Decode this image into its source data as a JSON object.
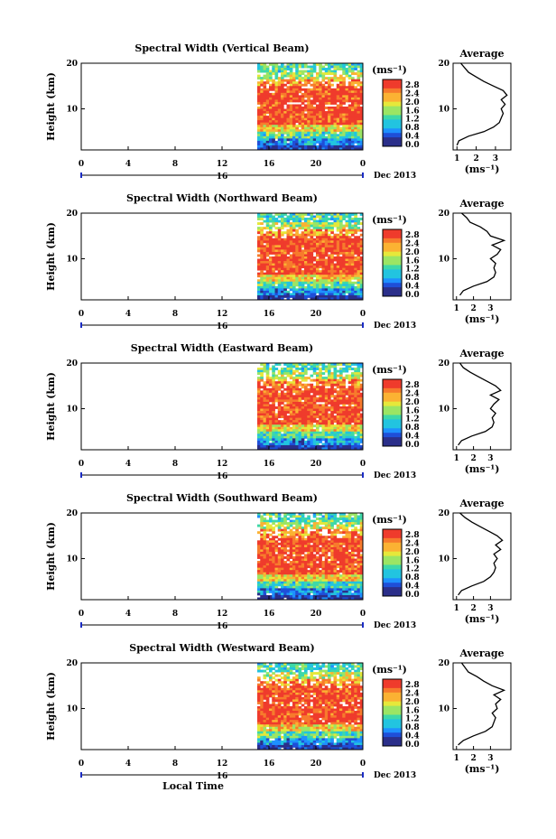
{
  "page": {
    "xlabel": "Local Time",
    "colorscale": [
      "#2b2f8a",
      "#1f4fd8",
      "#1e90ff",
      "#22c4e0",
      "#3ed8a8",
      "#9be564",
      "#e6e83a",
      "#fbb233",
      "#f77b2c",
      "#ef3b2c"
    ]
  },
  "chart_data": [
    {
      "type": "heatmap",
      "title": "Spectral Width (Vertical Beam)",
      "ylabel": "Height (km)",
      "xticks": [
        "0",
        "4",
        "8",
        "12",
        "16",
        "20",
        "0"
      ],
      "date_marker": "16",
      "date_label": "Dec 2013",
      "yticks": [
        "20",
        "10"
      ],
      "xlim": [
        0,
        24
      ],
      "ylim": [
        1,
        20
      ],
      "data_start_hour": 15,
      "colorbar": {
        "unit": "(ms⁻¹)",
        "ticks": [
          "2.8",
          "2.4",
          "2.0",
          "1.6",
          "1.2",
          "0.8",
          "0.4",
          "0.0"
        ],
        "range": [
          0.0,
          3.0
        ]
      },
      "profile": {
        "title": "Average",
        "xlabel": "(ms⁻¹)",
        "xticks": [
          "1",
          "2",
          "3"
        ],
        "xlim": [
          0.8,
          3.8
        ],
        "yticks": [
          "20",
          "10"
        ],
        "ylim": [
          1,
          20
        ],
        "heights": [
          2,
          3,
          4,
          5,
          6,
          7,
          8,
          9,
          10,
          11,
          12,
          13,
          14,
          15,
          16,
          17,
          18,
          19,
          20
        ],
        "values": [
          1.0,
          1.1,
          1.6,
          2.4,
          2.9,
          3.2,
          3.3,
          3.4,
          3.3,
          3.5,
          3.3,
          3.6,
          3.4,
          2.9,
          2.4,
          2.0,
          1.6,
          1.4,
          1.2
        ]
      }
    },
    {
      "type": "heatmap",
      "title": "Spectral Width (Northward Beam)",
      "ylabel": "Height (km)",
      "xticks": [
        "0",
        "4",
        "8",
        "12",
        "16",
        "20",
        "0"
      ],
      "date_marker": "16",
      "date_label": "Dec 2013",
      "yticks": [
        "20",
        "10"
      ],
      "xlim": [
        0,
        24
      ],
      "ylim": [
        1,
        20
      ],
      "data_start_hour": 15,
      "colorbar": {
        "unit": "(ms⁻¹)",
        "ticks": [
          "2.8",
          "2.4",
          "2.0",
          "1.6",
          "1.2",
          "0.8",
          "0.4",
          "0.0"
        ],
        "range": [
          0.0,
          3.0
        ]
      },
      "profile": {
        "title": "Average",
        "xlabel": "(ms⁻¹)",
        "xticks": [
          "1",
          "2",
          "3"
        ],
        "xlim": [
          0.8,
          4.2
        ],
        "yticks": [
          "20",
          "10"
        ],
        "ylim": [
          1,
          20
        ],
        "heights": [
          2,
          3,
          4,
          5,
          6,
          7,
          8,
          9,
          10,
          11,
          12,
          13,
          14,
          15,
          16,
          17,
          18,
          19,
          20
        ],
        "values": [
          1.2,
          1.4,
          2.0,
          2.8,
          3.2,
          3.3,
          3.2,
          3.3,
          3.0,
          3.4,
          3.6,
          3.1,
          3.8,
          3.0,
          2.8,
          2.4,
          1.8,
          1.6,
          1.3
        ]
      }
    },
    {
      "type": "heatmap",
      "title": "Spectral Width (Eastward Beam)",
      "ylabel": "Height (km)",
      "xticks": [
        "0",
        "4",
        "8",
        "12",
        "16",
        "20",
        "0"
      ],
      "date_marker": "16",
      "date_label": "Dec 2013",
      "yticks": [
        "20",
        "10"
      ],
      "xlim": [
        0,
        24
      ],
      "ylim": [
        1,
        20
      ],
      "data_start_hour": 15,
      "colorbar": {
        "unit": "(ms⁻¹)",
        "ticks": [
          "2.8",
          "2.4",
          "2.0",
          "1.6",
          "1.2",
          "0.8",
          "0.4",
          "0.0"
        ],
        "range": [
          0.0,
          3.0
        ]
      },
      "profile": {
        "title": "Average",
        "xlabel": "(ms⁻¹)",
        "xticks": [
          "1",
          "2",
          "3"
        ],
        "xlim": [
          0.8,
          4.2
        ],
        "yticks": [
          "20",
          "10"
        ],
        "ylim": [
          1,
          20
        ],
        "heights": [
          2,
          3,
          4,
          5,
          6,
          7,
          8,
          9,
          10,
          11,
          12,
          13,
          14,
          15,
          16,
          17,
          18,
          19,
          20
        ],
        "values": [
          1.1,
          1.3,
          1.9,
          2.7,
          3.1,
          3.2,
          3.1,
          3.3,
          3.0,
          3.2,
          3.5,
          3.0,
          3.6,
          3.3,
          2.8,
          2.3,
          1.8,
          1.4,
          1.2
        ]
      }
    },
    {
      "type": "heatmap",
      "title": "Spectral Width (Southward Beam)",
      "ylabel": "Height (km)",
      "xticks": [
        "0",
        "4",
        "8",
        "12",
        "16",
        "20",
        "0"
      ],
      "date_marker": "16",
      "date_label": "Dec 2013",
      "yticks": [
        "20",
        "10"
      ],
      "xlim": [
        0,
        24
      ],
      "ylim": [
        1,
        20
      ],
      "data_start_hour": 15,
      "colorbar": {
        "unit": "(ms⁻¹)",
        "ticks": [
          "2.8",
          "2.4",
          "2.0",
          "1.6",
          "1.2",
          "0.8",
          "0.4",
          "0.0"
        ],
        "range": [
          0.0,
          3.0
        ]
      },
      "profile": {
        "title": "Average",
        "xlabel": "(ms⁻¹)",
        "xticks": [
          "1",
          "2",
          "3"
        ],
        "xlim": [
          0.8,
          4.2
        ],
        "yticks": [
          "20",
          "10"
        ],
        "ylim": [
          1,
          20
        ],
        "heights": [
          2,
          3,
          4,
          5,
          6,
          7,
          8,
          9,
          10,
          11,
          12,
          13,
          14,
          15,
          16,
          17,
          18,
          19,
          20
        ],
        "values": [
          1.1,
          1.3,
          1.9,
          2.6,
          3.0,
          3.2,
          3.3,
          3.2,
          3.4,
          3.2,
          3.6,
          3.3,
          3.7,
          3.4,
          2.9,
          2.4,
          1.9,
          1.5,
          1.2
        ]
      }
    },
    {
      "type": "heatmap",
      "title": "Spectral Width (Westward Beam)",
      "ylabel": "Height (km)",
      "xticks": [
        "0",
        "4",
        "8",
        "12",
        "16",
        "20",
        "0"
      ],
      "date_marker": "16",
      "date_label": "Dec 2013",
      "yticks": [
        "20",
        "10"
      ],
      "xlim": [
        0,
        24
      ],
      "ylim": [
        1,
        20
      ],
      "data_start_hour": 15,
      "colorbar": {
        "unit": "(ms⁻¹)",
        "ticks": [
          "2.8",
          "2.4",
          "2.0",
          "1.6",
          "1.2",
          "0.8",
          "0.4",
          "0.0"
        ],
        "range": [
          0.0,
          3.0
        ]
      },
      "profile": {
        "title": "Average",
        "xlabel": "(ms⁻¹)",
        "xticks": [
          "1",
          "2",
          "3"
        ],
        "xlim": [
          0.8,
          4.2
        ],
        "yticks": [
          "20",
          "10"
        ],
        "ylim": [
          1,
          20
        ],
        "heights": [
          2,
          3,
          4,
          5,
          6,
          7,
          8,
          9,
          10,
          11,
          12,
          13,
          14,
          15,
          16,
          17,
          18,
          19,
          20
        ],
        "values": [
          1.1,
          1.4,
          2.0,
          2.7,
          3.1,
          3.2,
          3.3,
          3.1,
          3.4,
          3.3,
          3.6,
          3.2,
          3.8,
          3.1,
          2.6,
          2.2,
          1.7,
          1.5,
          1.3
        ]
      }
    }
  ]
}
